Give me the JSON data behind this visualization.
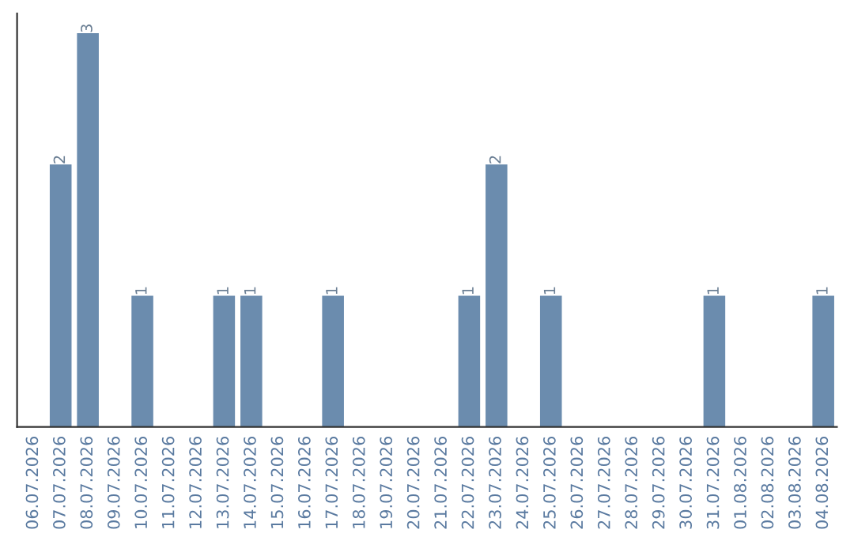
{
  "chart_data": {
    "type": "bar",
    "categories": [
      "06.07.2026",
      "07.07.2026",
      "08.07.2026",
      "09.07.2026",
      "10.07.2026",
      "11.07.2026",
      "12.07.2026",
      "13.07.2026",
      "14.07.2026",
      "15.07.2026",
      "16.07.2026",
      "17.07.2026",
      "18.07.2026",
      "19.07.2026",
      "20.07.2026",
      "21.07.2026",
      "22.07.2026",
      "23.07.2026",
      "24.07.2026",
      "25.07.2026",
      "26.07.2026",
      "27.07.2026",
      "28.07.2026",
      "29.07.2026",
      "30.07.2026",
      "31.07.2026",
      "01.08.2026",
      "02.08.2026",
      "03.08.2026",
      "04.08.2026"
    ],
    "values": [
      0,
      2,
      3,
      0,
      1,
      0,
      0,
      1,
      1,
      0,
      0,
      1,
      0,
      0,
      0,
      0,
      1,
      2,
      0,
      1,
      0,
      0,
      0,
      0,
      0,
      1,
      0,
      0,
      0,
      1
    ],
    "value_labels": [
      null,
      "2",
      "3",
      null,
      "1",
      null,
      null,
      "1",
      "1",
      null,
      null,
      "1",
      null,
      null,
      null,
      null,
      "1",
      "2",
      null,
      "1",
      null,
      null,
      null,
      null,
      null,
      "1",
      null,
      null,
      null,
      "1"
    ],
    "color": "#6b8cae",
    "grid": false,
    "legend": false,
    "tick_labels": "x"
  }
}
